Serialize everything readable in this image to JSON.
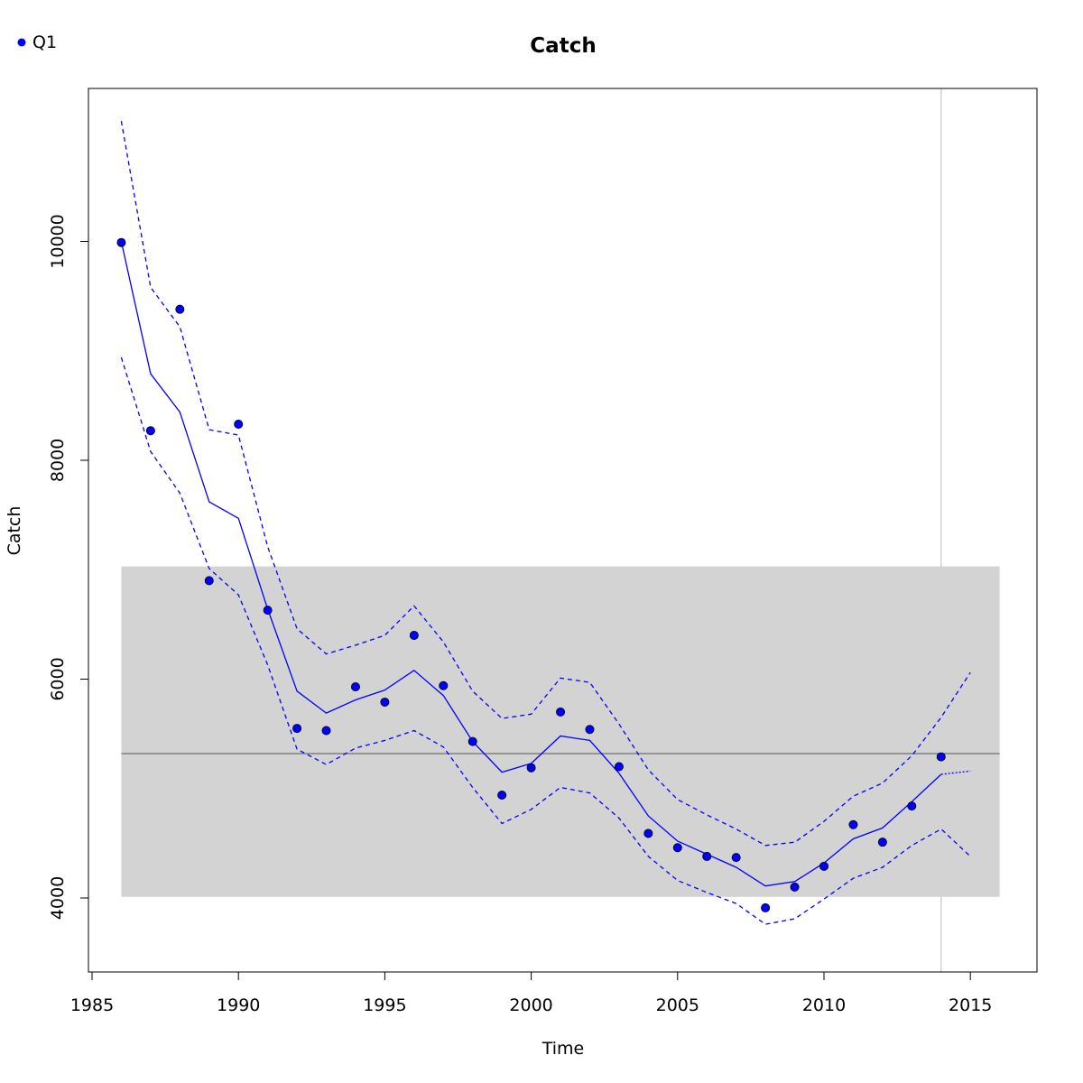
{
  "chart_data": {
    "type": "line",
    "title": "Catch",
    "xlabel": "Time",
    "ylabel": "Catch",
    "xlim": [
      1985,
      2017
    ],
    "ylim": [
      3350,
      11400
    ],
    "x_ticks": [
      1985,
      1990,
      1995,
      2000,
      2005,
      2010,
      2015
    ],
    "y_ticks": [
      4000,
      6000,
      8000,
      10000
    ],
    "x_tick_labels": [
      "1985",
      "1990",
      "1995",
      "2000",
      "2005",
      "2010",
      "2015"
    ],
    "y_tick_labels": [
      "4000",
      "6000",
      "8000",
      "10000"
    ],
    "legend": {
      "position": "top-left",
      "entries": [
        {
          "label": "Q1",
          "color": "#0000ff",
          "symbol": "point"
        }
      ]
    },
    "reference_band": {
      "x_range": [
        1986,
        2016
      ],
      "y_range": [
        4010,
        7030
      ],
      "color": "#d3d3d3"
    },
    "reference_hline": {
      "y": 5320,
      "color": "#808080"
    },
    "reference_vline": {
      "x": 2014,
      "color": "#d3d3d3"
    },
    "grid": false,
    "colors": {
      "series": "#0000ff",
      "band": "#d3d3d3",
      "hline": "#808080",
      "vline": "#d3d3d3"
    },
    "series": [
      {
        "name": "Q1",
        "role": "observed",
        "style": "points",
        "x": [
          1986,
          1987,
          1988,
          1989,
          1990,
          1991,
          1992,
          1993,
          1994,
          1995,
          1996,
          1997,
          1998,
          1999,
          2000,
          2001,
          2002,
          2003,
          2004,
          2005,
          2006,
          2007,
          2008,
          2009,
          2010,
          2011,
          2012,
          2013,
          2014
        ],
        "values": [
          9990,
          8270,
          9380,
          6900,
          8330,
          6630,
          5550,
          5530,
          5930,
          5790,
          6400,
          5940,
          5430,
          4940,
          5190,
          5700,
          5540,
          5200,
          4590,
          4460,
          4380,
          4370,
          3910,
          4100,
          4290,
          4670,
          4510,
          4840,
          5290
        ]
      },
      {
        "role": "fitted",
        "style": "solid",
        "x": [
          1986,
          1987,
          1988,
          1989,
          1990,
          1991,
          1992,
          1993,
          1994,
          1995,
          1996,
          1997,
          1998,
          1999,
          2000,
          2001,
          2002,
          2003,
          2004,
          2005,
          2006,
          2007,
          2008,
          2009,
          2010,
          2011,
          2012,
          2013,
          2014
        ],
        "values": [
          10000,
          8790,
          8440,
          7620,
          7470,
          6640,
          5890,
          5690,
          5810,
          5900,
          6080,
          5850,
          5430,
          5150,
          5230,
          5480,
          5440,
          5140,
          4750,
          4520,
          4400,
          4280,
          4110,
          4150,
          4320,
          4540,
          4640,
          4880,
          5130
        ]
      },
      {
        "role": "upper-ci",
        "style": "dashed",
        "x": [
          1986,
          1987,
          1988,
          1989,
          1990,
          1991,
          1992,
          1993,
          1994,
          1995,
          1996,
          1997,
          1998,
          1999,
          2000,
          2001,
          2002,
          2003,
          2004,
          2005,
          2006,
          2007,
          2008,
          2009,
          2010,
          2011,
          2012,
          2013,
          2014,
          2015
        ],
        "values": [
          11100,
          9580,
          9220,
          8280,
          8230,
          7210,
          6460,
          6230,
          6310,
          6400,
          6670,
          6340,
          5890,
          5640,
          5680,
          6010,
          5970,
          5590,
          5170,
          4900,
          4760,
          4630,
          4480,
          4510,
          4700,
          4930,
          5050,
          5300,
          5650,
          6060
        ]
      },
      {
        "role": "lower-ci",
        "style": "dashed",
        "x": [
          1986,
          1987,
          1988,
          1989,
          1990,
          1991,
          1992,
          1993,
          1994,
          1995,
          1996,
          1997,
          1998,
          1999,
          2000,
          2001,
          2002,
          2003,
          2004,
          2005,
          2006,
          2007,
          2008,
          2009,
          2010,
          2011,
          2012,
          2013,
          2014,
          2015
        ],
        "values": [
          8940,
          8080,
          7700,
          7010,
          6770,
          6130,
          5360,
          5220,
          5370,
          5440,
          5530,
          5380,
          5010,
          4680,
          4810,
          5010,
          4960,
          4730,
          4380,
          4160,
          4050,
          3950,
          3760,
          3810,
          3990,
          4180,
          4280,
          4480,
          4630,
          4380
        ]
      },
      {
        "role": "forecast",
        "style": "dotted",
        "x": [
          2014,
          2015
        ],
        "values": [
          5130,
          5160
        ]
      }
    ]
  }
}
